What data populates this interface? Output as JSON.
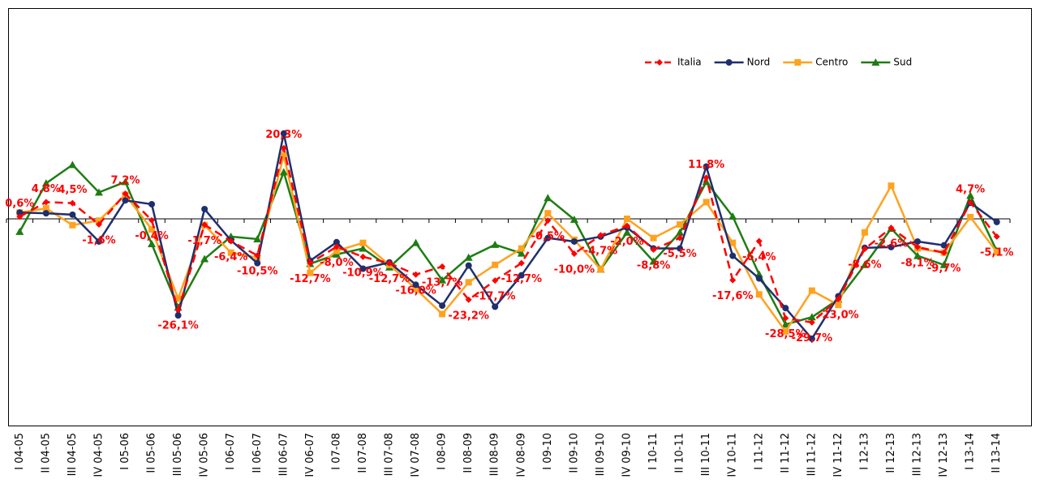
{
  "chart_data": {
    "type": "line",
    "categories": [
      "I 04-05",
      "II 04-05",
      "III 04-05",
      "IV 04-05",
      "I 05-06",
      "II 05-06",
      "III 05-06",
      "IV 05-06",
      "I 06-07",
      "II 06-07",
      "III 06-07",
      "IV 06-07",
      "I 07-08",
      "II 07-08",
      "III 07-08",
      "IV 07-08",
      "I 08-09",
      "II 08-09",
      "III 08-09",
      "IV 08-09",
      "I 09-10",
      "II 09-10",
      "III 09-10",
      "IV 09-10",
      "I 10-11",
      "II 10-11",
      "III 10-11",
      "IV 10-11",
      "I 11-12",
      "II 11-12",
      "III 11-12",
      "IV 11-12",
      "I 12-13",
      "II 12-13",
      "III 12-13",
      "IV 12-13",
      "I 13-14",
      "II 13-14"
    ],
    "ylim": [
      -60,
      60
    ],
    "series": [
      {
        "name": "Italia",
        "color": "#ff0000",
        "marker": "diamond",
        "dash": "dashed",
        "values": [
          0.6,
          4.8,
          4.5,
          -1.6,
          7.2,
          -0.4,
          -26.1,
          -1.7,
          -6.4,
          -10.5,
          20.3,
          -12.7,
          -8.0,
          -10.9,
          -12.7,
          -16.0,
          -13.7,
          -23.2,
          -17.7,
          -12.7,
          -0.5,
          -10.0,
          -4.7,
          -2.0,
          -8.8,
          -5.5,
          11.8,
          -17.6,
          -6.4,
          -28.5,
          -29.7,
          -23.0,
          -8.6,
          -2.6,
          -8.1,
          -9.7,
          4.7,
          -5.1
        ],
        "value_labels": [
          "0,6%",
          "4,8%",
          "4,5%",
          "-1,6%",
          "7,2%",
          "-0,4%",
          "-26,1%",
          "-1,7%",
          "-6,4%",
          "-10,5%",
          "20,3%",
          "-12,7%",
          "-8,0%",
          "-10,9%",
          "-12,7%",
          "-16,0%",
          "-13,7%",
          "-23,2%",
          "-17,7%",
          "-12,7%",
          "-0,5%",
          "-10,0%",
          "-4,7%",
          "-2,0%",
          "-8,8%",
          "-5,5%",
          "11,8%",
          "-17,6%",
          "-6,4%",
          "-28,5%",
          "-29,7%",
          "-23,0%",
          "-8,6%",
          "-2,6%",
          "-8,1%",
          "-9,7%",
          "4,7%",
          "-5,1%"
        ]
      },
      {
        "name": "Nord",
        "color": "#1f2f6e",
        "marker": "circle",
        "dash": "solid",
        "values": [
          1.8,
          1.6,
          1.2,
          -6.5,
          5.3,
          4.2,
          -27.7,
          2.8,
          -6.2,
          -12.7,
          24.5,
          -12.0,
          -6.7,
          -14.3,
          -12.5,
          -18.9,
          -24.9,
          -13.4,
          -25.2,
          -16.2,
          -5.5,
          -6.5,
          -5.1,
          -2.5,
          -8.5,
          -8.5,
          15.0,
          -10.6,
          -17.1,
          -25.6,
          -34.4,
          -22.2,
          -8.3,
          -8.1,
          -6.5,
          -7.6,
          4.6,
          -0.9
        ]
      },
      {
        "name": "Centro",
        "color": "#ffa21f",
        "marker": "square",
        "dash": "solid",
        "values": [
          1.8,
          3.0,
          -1.8,
          -0.5,
          6.9,
          -3.0,
          -22.9,
          -1.8,
          -9.7,
          -11.1,
          18.2,
          -15.5,
          -9.2,
          -6.9,
          -13.2,
          -20.1,
          -27.3,
          -18.2,
          -13.2,
          -8.5,
          1.6,
          -6.0,
          -14.5,
          0,
          -5.5,
          -1.6,
          4.8,
          -6.9,
          -21.7,
          -32.3,
          -20.6,
          -24.7,
          -3.9,
          9.5,
          -8.5,
          -9.7,
          0.5,
          -9.5
        ]
      },
      {
        "name": "Sud",
        "color": "#1e7d12",
        "marker": "triangle",
        "dash": "solid",
        "values": [
          -3.7,
          10.2,
          15.5,
          7.6,
          10.6,
          -7.2,
          -25.4,
          -11.5,
          -5.1,
          -5.8,
          13.4,
          -12.9,
          -10.2,
          -8.5,
          -13.9,
          -6.9,
          -17.6,
          -11.1,
          -7.4,
          -9.9,
          6.0,
          -0.2,
          -14.5,
          -3.9,
          -12.2,
          -3.9,
          10.6,
          0.7,
          -15.9,
          -30.3,
          -28.2,
          -23.1,
          -13.2,
          -2.8,
          -10.6,
          -13.2,
          6.7,
          -9.2
        ]
      }
    ]
  }
}
